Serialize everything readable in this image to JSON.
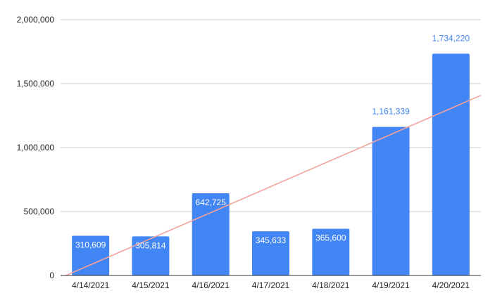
{
  "chart_data": {
    "type": "bar",
    "title": "",
    "xlabel": "",
    "ylabel": "",
    "categories": [
      "4/14/2021",
      "4/15/2021",
      "4/16/2021",
      "4/17/2021",
      "4/18/2021",
      "4/19/2021",
      "4/20/2021"
    ],
    "series": [
      {
        "values": [
          310609,
          305814,
          642725,
          345633,
          365600,
          1161339,
          1734220
        ],
        "data_labels": [
          "310,609",
          "305,814",
          "642,725",
          "345,633",
          "365,600",
          "1,161,339",
          "1,734,220"
        ],
        "color": "#4285f4"
      }
    ],
    "trendline": {
      "type": "linear",
      "color": "#f4a29b"
    },
    "ylim": [
      0,
      2000000
    ],
    "yticks": [
      0,
      500000,
      1000000,
      1500000,
      2000000
    ],
    "ytick_labels": [
      "0",
      "500,000",
      "1,000,000",
      "1,500,000",
      "2,000,000"
    ],
    "grid": true,
    "legend": "none",
    "colors": {
      "bar": "#4285f4",
      "label_inside": "#ffffff",
      "label_outside": "#4285f4",
      "grid": "#cccccc",
      "axis": "#333333",
      "trendline": "#f4a29b"
    }
  }
}
